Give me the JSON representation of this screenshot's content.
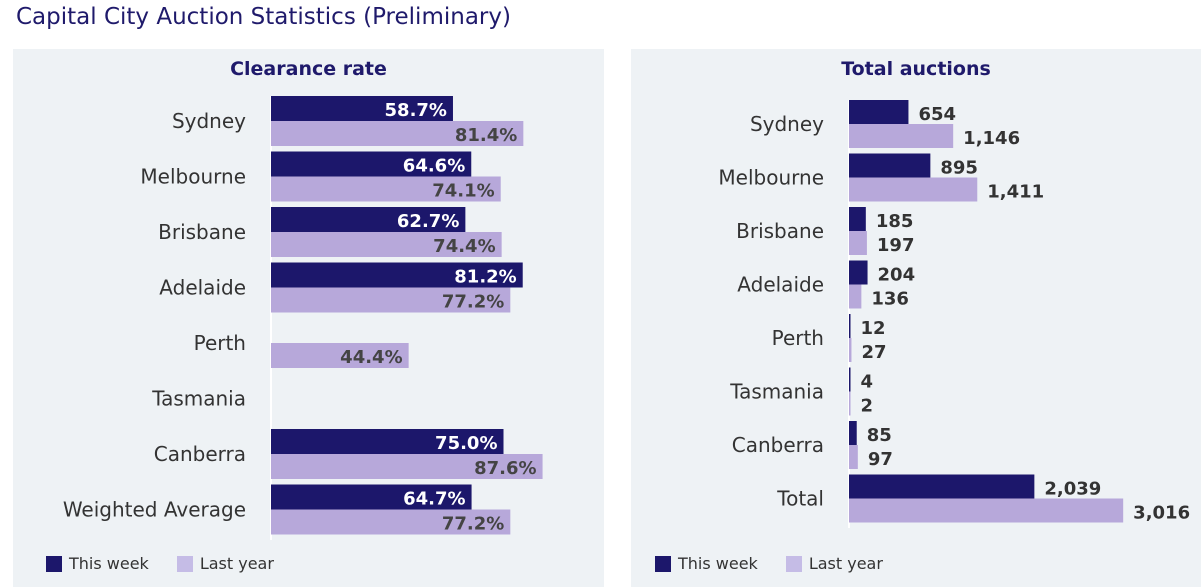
{
  "page": {
    "title": "Capital City Auction Statistics (Preliminary)"
  },
  "colors": {
    "this_week": "#1c176b",
    "last_year": "#b7a8da",
    "panel_bg": "#eef2f5"
  },
  "chart_data": [
    {
      "type": "bar",
      "orientation": "horizontal",
      "title": "Clearance rate",
      "categories": [
        "Sydney",
        "Melbourne",
        "Brisbane",
        "Adelaide",
        "Perth",
        "Tasmania",
        "Canberra",
        "Weighted Average"
      ],
      "series": [
        {
          "name": "This week",
          "values": [
            58.7,
            64.6,
            62.7,
            81.2,
            null,
            null,
            75.0,
            64.7
          ],
          "labels": [
            "58.7%",
            "64.6%",
            "62.7%",
            "81.2%",
            "",
            "",
            "75.0%",
            "64.7%"
          ]
        },
        {
          "name": "Last year",
          "values": [
            81.4,
            74.1,
            74.4,
            77.2,
            44.4,
            null,
            87.6,
            77.2
          ],
          "labels": [
            "81.4%",
            "74.1%",
            "74.4%",
            "77.2%",
            "44.4%",
            "",
            "87.6%",
            "77.2%"
          ]
        }
      ],
      "xlim": [
        0,
        100
      ],
      "legend": [
        "This week",
        "Last year"
      ],
      "legend_position": "bottom-left",
      "grid": false
    },
    {
      "type": "bar",
      "orientation": "horizontal",
      "title": "Total auctions",
      "categories": [
        "Sydney",
        "Melbourne",
        "Brisbane",
        "Adelaide",
        "Perth",
        "Tasmania",
        "Canberra",
        "Total"
      ],
      "series": [
        {
          "name": "This week",
          "values": [
            654,
            895,
            185,
            204,
            12,
            4,
            85,
            2039
          ],
          "labels": [
            "654",
            "895",
            "185",
            "204",
            "12",
            "4",
            "85",
            "2,039"
          ]
        },
        {
          "name": "Last year",
          "values": [
            1146,
            1411,
            197,
            136,
            27,
            2,
            97,
            3016
          ],
          "labels": [
            "1,146",
            "1,411",
            "197",
            "136",
            "27",
            "2",
            "97",
            "3,016"
          ]
        }
      ],
      "xlim": [
        0,
        3300
      ],
      "legend": [
        "This week",
        "Last year"
      ],
      "legend_position": "bottom-left",
      "grid": false
    }
  ]
}
